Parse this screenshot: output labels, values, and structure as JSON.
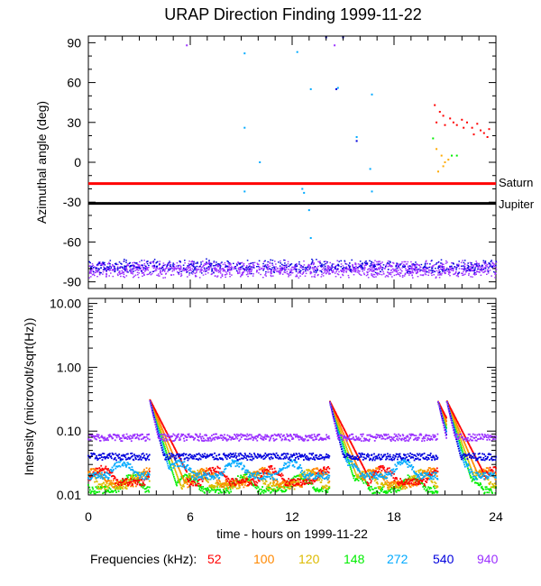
{
  "chart_data": [
    {
      "type": "scatter",
      "title": "URAP Direction Finding  1999-11-22",
      "xlabel": "",
      "ylabel": "Azimuthal angle (deg)",
      "xlim": [
        0,
        24
      ],
      "ylim": [
        -95,
        95
      ],
      "yticks": [
        "90",
        "60",
        "30",
        "0",
        "-30",
        "-60",
        "-90"
      ],
      "yticks_values": [
        90,
        60,
        30,
        0,
        -30,
        -60,
        -90
      ],
      "reference_lines": [
        {
          "label": "Saturn",
          "y": -16,
          "color": "#ff0000"
        },
        {
          "label": "Jupiter",
          "y": -31,
          "color": "#000000"
        }
      ],
      "series": [
        {
          "name": "940 kHz band",
          "color": "#9b30ff",
          "y_center": -80,
          "y_spread": 7,
          "x_range": [
            0,
            24
          ]
        },
        {
          "name": "540 kHz band",
          "color": "#0000dd",
          "y_center": -78,
          "y_spread": 6,
          "x_range": [
            0,
            24
          ]
        },
        {
          "name": "272 kHz",
          "color": "#00aaff",
          "points": [
            [
              9.2,
              82
            ],
            [
              9.2,
              26
            ],
            [
              9.2,
              -22
            ],
            [
              10.1,
              0
            ],
            [
              12.3,
              83
            ],
            [
              12.6,
              -20
            ],
            [
              12.7,
              -23
            ],
            [
              13,
              -36
            ],
            [
              13.1,
              55
            ],
            [
              13.1,
              -57
            ],
            [
              14.7,
              56
            ],
            [
              15.8,
              19
            ],
            [
              16.7,
              51
            ],
            [
              16.6,
              -5
            ],
            [
              16.7,
              -22
            ]
          ]
        },
        {
          "name": "540 kHz",
          "color": "#0000dd",
          "points": [
            [
              14.6,
              55
            ],
            [
              15.8,
              16
            ],
            [
              14,
              94
            ],
            [
              15,
              94
            ]
          ]
        },
        {
          "name": "940 kHz",
          "color": "#9b30ff",
          "points": [
            [
              5.8,
              88
            ],
            [
              14.5,
              88
            ]
          ]
        },
        {
          "name": "52 kHz",
          "color": "#ff0000",
          "points": [
            [
              20.4,
              43
            ],
            [
              20.7,
              38
            ],
            [
              20.5,
              30
            ],
            [
              20.9,
              35
            ],
            [
              21,
              28
            ],
            [
              21.3,
              33
            ],
            [
              21.5,
              30
            ],
            [
              21.7,
              28
            ],
            [
              22,
              32
            ],
            [
              22.1,
              26
            ],
            [
              22.3,
              30
            ],
            [
              22.6,
              26
            ],
            [
              22.7,
              21
            ],
            [
              22.9,
              29
            ],
            [
              23.1,
              24
            ],
            [
              23.3,
              22
            ],
            [
              23.5,
              19
            ],
            [
              23.6,
              25
            ]
          ]
        },
        {
          "name": "120 kHz",
          "color": "#ffaa00",
          "points": [
            [
              20.5,
              10
            ],
            [
              20.8,
              5
            ],
            [
              21,
              0
            ],
            [
              20.9,
              -3
            ],
            [
              20.6,
              -7
            ],
            [
              21.2,
              2
            ]
          ]
        },
        {
          "name": "148 kHz",
          "color": "#00ee00",
          "points": [
            [
              20.3,
              18
            ],
            [
              21.4,
              5
            ],
            [
              21.7,
              5
            ]
          ]
        }
      ]
    },
    {
      "type": "line",
      "title": "",
      "xlabel": "time - hours on 1999-11-22",
      "ylabel": "Intensity (microvolt/sqrt(Hz))",
      "xlim": [
        0,
        24
      ],
      "ylim": [
        0.01,
        12
      ],
      "yscale": "log",
      "xticks": [
        "0",
        "6",
        "12",
        "18",
        "24"
      ],
      "xticks_values": [
        0,
        6,
        12,
        18,
        24
      ],
      "yticks": [
        "10.00",
        "1.00",
        "0.10",
        "0.01"
      ],
      "yticks_values": [
        10,
        1,
        0.1,
        0.01
      ],
      "series": [
        {
          "name": "52",
          "color": "#ff0000",
          "baseline": 0.016
        },
        {
          "name": "100",
          "color": "#ff8800",
          "baseline": 0.015
        },
        {
          "name": "120",
          "color": "#ddbb00",
          "baseline": 0.014
        },
        {
          "name": "148",
          "color": "#00ee00",
          "baseline": 0.012
        },
        {
          "name": "272",
          "color": "#00aaff",
          "baseline": 0.02
        },
        {
          "name": "540",
          "color": "#0000dd",
          "baseline": 0.04
        },
        {
          "name": "940",
          "color": "#9b30ff",
          "baseline": 0.08
        }
      ],
      "bursts": [
        {
          "t": 3.6,
          "peak": 0.32
        },
        {
          "t": 14.2,
          "peak": 0.3
        },
        {
          "t": 20.6,
          "peak": 0.29
        },
        {
          "t": 21.1,
          "peak": 0.3
        }
      ]
    }
  ],
  "legend": {
    "label": "Frequencies (kHz):",
    "items": [
      {
        "text": "52",
        "color": "#ff0000"
      },
      {
        "text": "100",
        "color": "#ff8800"
      },
      {
        "text": "120",
        "color": "#ddbb00"
      },
      {
        "text": "148",
        "color": "#00ee00"
      },
      {
        "text": "272",
        "color": "#00aaff"
      },
      {
        "text": "540",
        "color": "#0000dd"
      },
      {
        "text": "940",
        "color": "#9b30ff"
      }
    ]
  }
}
